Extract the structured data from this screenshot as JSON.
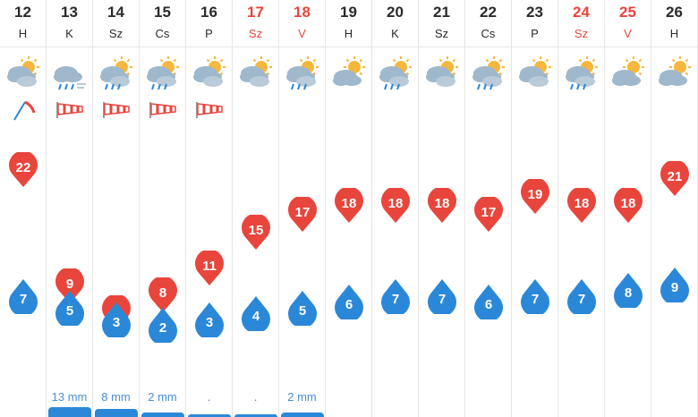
{
  "colors": {
    "high": "#e8453c",
    "low": "#2b88d8",
    "weekend": "#e8453c",
    "rain": "#4a8fd1"
  },
  "days": [
    {
      "num": "12",
      "name": "H",
      "weekend": false,
      "icon": "partly-cloudy-icon",
      "wind": "wind-vane-icon",
      "high": "22",
      "low": "7",
      "rain": "",
      "rainBar": 0
    },
    {
      "num": "13",
      "name": "K",
      "weekend": false,
      "icon": "rain-wind-icon",
      "wind": "windsock-icon",
      "high": "9",
      "low": "5",
      "rain": "13 mm",
      "rainBar": 0.35
    },
    {
      "num": "14",
      "name": "Sz",
      "weekend": false,
      "icon": "sun-rain-icon",
      "wind": "windsock-icon",
      "high": "6",
      "low": "3",
      "rain": "8 mm",
      "rainBar": 0.3
    },
    {
      "num": "15",
      "name": "Cs",
      "weekend": false,
      "icon": "sun-rain-icon",
      "wind": "windsock-icon",
      "high": "8",
      "low": "2",
      "rain": "2 mm",
      "rainBar": 0.15
    },
    {
      "num": "16",
      "name": "P",
      "weekend": false,
      "icon": "partly-cloudy-icon",
      "wind": "windsock-icon",
      "high": "11",
      "low": "3",
      "rain": ".",
      "rainBar": 0.1
    },
    {
      "num": "17",
      "name": "Sz",
      "weekend": true,
      "icon": "partly-cloudy-icon",
      "wind": "",
      "high": "15",
      "low": "4",
      "rain": ".",
      "rainBar": 0.1
    },
    {
      "num": "18",
      "name": "V",
      "weekend": true,
      "icon": "sun-rain-icon",
      "wind": "",
      "high": "17",
      "low": "5",
      "rain": "2 mm",
      "rainBar": 0.15
    },
    {
      "num": "19",
      "name": "H",
      "weekend": false,
      "icon": "sun-cloud-icon",
      "wind": "",
      "high": "18",
      "low": "6",
      "rain": "",
      "rainBar": 0
    },
    {
      "num": "20",
      "name": "K",
      "weekend": false,
      "icon": "sun-rain-icon",
      "wind": "",
      "high": "18",
      "low": "7",
      "rain": "",
      "rainBar": 0
    },
    {
      "num": "21",
      "name": "Sz",
      "weekend": false,
      "icon": "partly-cloudy-icon",
      "wind": "",
      "high": "18",
      "low": "7",
      "rain": "",
      "rainBar": 0
    },
    {
      "num": "22",
      "name": "Cs",
      "weekend": false,
      "icon": "sun-rain-icon",
      "wind": "",
      "high": "17",
      "low": "6",
      "rain": "",
      "rainBar": 0
    },
    {
      "num": "23",
      "name": "P",
      "weekend": false,
      "icon": "partly-cloudy-icon",
      "wind": "",
      "high": "19",
      "low": "7",
      "rain": "",
      "rainBar": 0
    },
    {
      "num": "24",
      "name": "Sz",
      "weekend": true,
      "icon": "sun-rain-icon",
      "wind": "",
      "high": "18",
      "low": "7",
      "rain": "",
      "rainBar": 0
    },
    {
      "num": "25",
      "name": "V",
      "weekend": true,
      "icon": "sun-cloud-icon",
      "wind": "",
      "high": "18",
      "low": "8",
      "rain": "",
      "rainBar": 0
    },
    {
      "num": "26",
      "name": "H",
      "weekend": false,
      "icon": "sun-cloud-icon",
      "wind": "",
      "high": "21",
      "low": "9",
      "rain": "",
      "rainBar": 0
    }
  ]
}
